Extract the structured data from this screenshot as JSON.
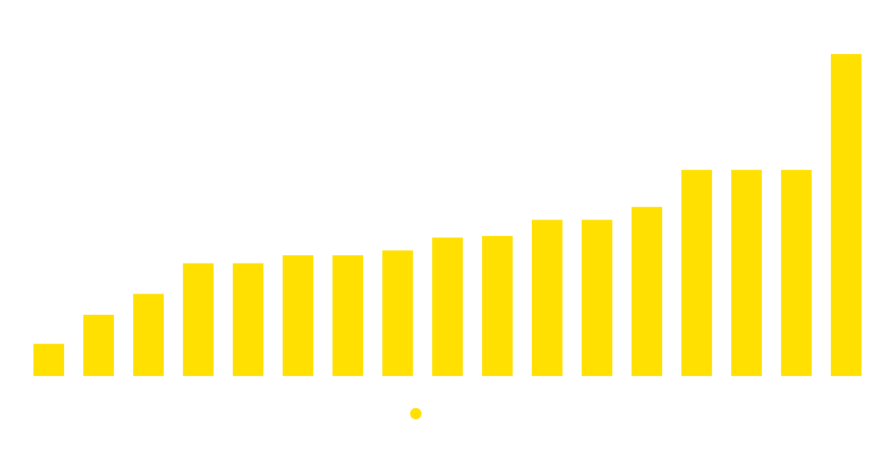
{
  "chart_data": {
    "type": "bar",
    "title": "",
    "xlabel": "",
    "ylabel": "",
    "grid": false,
    "legend_placement": "bottom-center",
    "ylim": [
      0,
      100
    ],
    "series": [
      {
        "name": "",
        "color": "#FFE000",
        "values": [
          10,
          19,
          25.5,
          35,
          35,
          37.5,
          37.5,
          39,
          43,
          43.5,
          48.5,
          48.5,
          52.5,
          64,
          64,
          64,
          100
        ]
      }
    ]
  }
}
